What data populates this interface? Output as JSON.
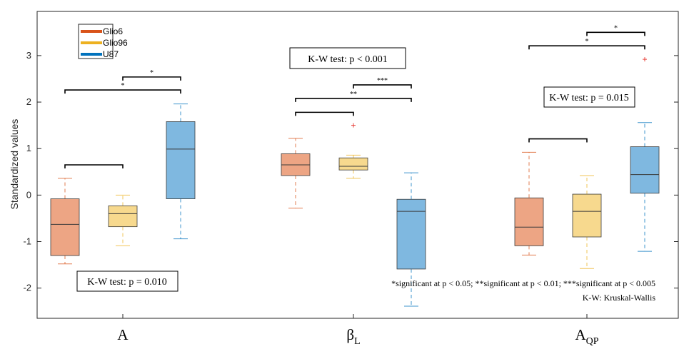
{
  "chart_data": {
    "type": "box",
    "ylabel": "Standardized values",
    "ylim": [
      -2.65,
      3.95
    ],
    "yticks": [
      -2,
      -1,
      0,
      1,
      2,
      3
    ],
    "categories": [
      {
        "main": "A",
        "sub": ""
      },
      {
        "main": "β",
        "sub": "L"
      },
      {
        "main": "A",
        "sub": "QP"
      }
    ],
    "series": [
      {
        "name": "Glio6",
        "color": "#D95319",
        "fill": "#EDA584",
        "boxes": [
          {
            "min": -1.48,
            "q1": -1.3,
            "median": -0.63,
            "q3": -0.08,
            "max": 0.36,
            "outliers": []
          },
          {
            "min": -0.28,
            "q1": 0.42,
            "median": 0.65,
            "q3": 0.89,
            "max": 1.22,
            "outliers": []
          },
          {
            "min": -1.29,
            "q1": -1.09,
            "median": -0.69,
            "q3": -0.06,
            "max": 0.92,
            "outliers": []
          }
        ]
      },
      {
        "name": "Glio96",
        "color": "#EDB120",
        "fill": "#F7D98E",
        "boxes": [
          {
            "min": -1.09,
            "q1": -0.68,
            "median": -0.4,
            "q3": -0.23,
            "max": 0.0,
            "outliers": []
          },
          {
            "min": 0.36,
            "q1": 0.54,
            "median": 0.62,
            "q3": 0.8,
            "max": 0.86,
            "outliers": [
              1.5
            ]
          },
          {
            "min": -1.58,
            "q1": -0.9,
            "median": -0.35,
            "q3": 0.02,
            "max": 0.42,
            "outliers": []
          }
        ]
      },
      {
        "name": "U87",
        "color": "#0072BD",
        "fill": "#7FB8E0",
        "boxes": [
          {
            "min": -0.94,
            "q1": -0.08,
            "median": 0.99,
            "q3": 1.58,
            "max": 1.96,
            "outliers": []
          },
          {
            "min": -2.39,
            "q1": -1.59,
            "median": -0.35,
            "q3": -0.09,
            "max": 0.48,
            "outliers": []
          },
          {
            "min": -1.21,
            "q1": 0.04,
            "median": 0.44,
            "q3": 1.04,
            "max": 1.56,
            "outliers": [
              2.92
            ]
          }
        ]
      }
    ],
    "brackets": [
      {
        "group": 0,
        "from": 0,
        "to": 1,
        "y": 0.65,
        "label": ""
      },
      {
        "group": 0,
        "from": 0,
        "to": 2,
        "y": 2.26,
        "label": "*"
      },
      {
        "group": 0,
        "from": 1,
        "to": 2,
        "y": 2.54,
        "label": "*"
      },
      {
        "group": 1,
        "from": 0,
        "to": 1,
        "y": 1.78,
        "label": ""
      },
      {
        "group": 1,
        "from": 0,
        "to": 2,
        "y": 2.08,
        "label": "**"
      },
      {
        "group": 1,
        "from": 1,
        "to": 2,
        "y": 2.37,
        "label": "***"
      },
      {
        "group": 2,
        "from": 0,
        "to": 1,
        "y": 1.21,
        "label": ""
      },
      {
        "group": 2,
        "from": 0,
        "to": 2,
        "y": 3.21,
        "label": "*"
      },
      {
        "group": 2,
        "from": 1,
        "to": 2,
        "y": 3.5,
        "label": "*"
      }
    ],
    "kw_tests": [
      "K-W test: p = 0.010",
      "K-W test: p < 0.001",
      "K-W test: p = 0.015"
    ],
    "footnote": "*significant at p < 0.05; **significant at p < 0.01; ***significant at p < 0.005",
    "abbrev": "K-W: Kruskal-Wallis",
    "legend_position": "top-left"
  }
}
